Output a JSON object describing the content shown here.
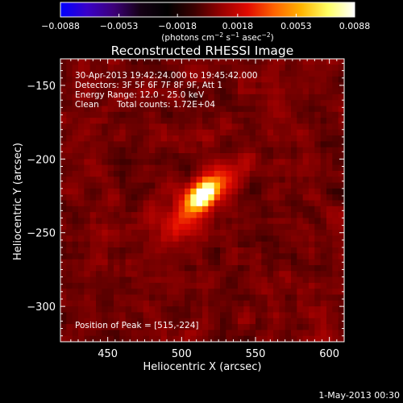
{
  "chart_data": {
    "type": "heatmap",
    "title": "Reconstructed RHESSI Image",
    "xlabel": "Heliocentric X (arcsec)",
    "ylabel": "Heliocentric Y (arcsec)",
    "xlim": [
      418,
      610
    ],
    "ylim": [
      -324,
      -132
    ],
    "x_ticks": [
      450,
      500,
      550,
      600
    ],
    "y_ticks": [
      -150,
      -200,
      -250,
      -300
    ],
    "x_tick_labels": [
      "450",
      "500",
      "550",
      "600"
    ],
    "y_tick_labels": [
      "−150",
      "−200",
      "−250",
      "−300"
    ],
    "annotations": {
      "time_range": "30-Apr-2013 19:42:24.000 to 19:45:42.000",
      "detectors": "Detectors: 3F 5F 6F 7F 8F 9F, Att 1",
      "energy_range": "Energy Range: 12.0 - 25.0 keV",
      "clean_label": "Clean",
      "total_counts": "Total counts: 1.72E+04",
      "peak_position": "Position of Peak = [515,-224]"
    },
    "peak": {
      "x": 515,
      "y": -224
    },
    "colorbar": {
      "min": -0.0088,
      "max": 0.0088,
      "tick_labels": [
        "−0.0088",
        "−0.0053",
        "−0.0018",
        "0.0018",
        "0.0053",
        "0.0088"
      ],
      "tick_values": [
        -0.0088,
        -0.0053,
        -0.0018,
        0.0018,
        0.0053,
        0.0088
      ],
      "units_main": "(photons cm",
      "units_exp1": "−2",
      "units_mid": " s",
      "units_exp2": "−1",
      "units_tail": " asec",
      "units_exp3": "−2",
      "units_close": ")",
      "colors": [
        "#0000ff",
        "#3a00c8",
        "#3c0078",
        "#140014",
        "#000000",
        "#3a0000",
        "#960000",
        "#e10a00",
        "#ff6400",
        "#ffb400",
        "#ffff64",
        "#ffffff"
      ]
    },
    "sources": [
      {
        "x": 515,
        "y": -224,
        "amp": 0.0088,
        "sx": 7.5,
        "sy": 4.5,
        "angle_deg": 45
      },
      {
        "x": 506,
        "y": -236,
        "amp": 0.003,
        "sx": 16,
        "sy": 9,
        "angle_deg": 40
      },
      {
        "x": 528,
        "y": -212,
        "amp": 0.002,
        "sx": 13,
        "sy": 7,
        "angle_deg": 45
      }
    ],
    "background_noise": 0.0015,
    "timestamp": "1-May-2013 00:30"
  }
}
